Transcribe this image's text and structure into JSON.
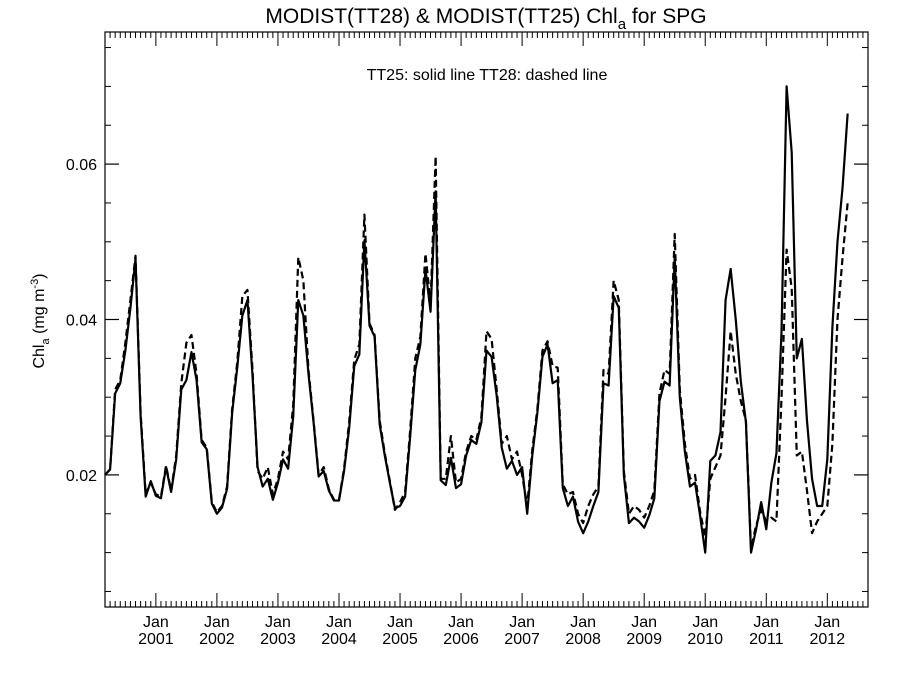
{
  "chart_data": {
    "type": "line",
    "title": {
      "prefix": "MODIST(TT28) & MODIST(TT25)  Chl",
      "subscript": "a",
      "suffix": " for SPG"
    },
    "ylabel": {
      "prefix": "Chl",
      "subscript": "a",
      "middle": " (mg m",
      "superscript": "-3",
      "suffix": ")"
    },
    "annotation": "TT25: solid line   TT28: dashed line",
    "xlim": [
      "2000-03",
      "2012-09"
    ],
    "ylim": [
      0.003,
      0.077
    ],
    "yticks": [
      0.02,
      0.04,
      0.06
    ],
    "ytick_labels": [
      "0.02",
      "0.04",
      "0.06"
    ],
    "xticks": [
      {
        "month": "2001-01",
        "top": "Jan",
        "bottom": "2001"
      },
      {
        "month": "2002-01",
        "top": "Jan",
        "bottom": "2002"
      },
      {
        "month": "2003-01",
        "top": "Jan",
        "bottom": "2003"
      },
      {
        "month": "2004-01",
        "top": "Jan",
        "bottom": "2004"
      },
      {
        "month": "2005-01",
        "top": "Jan",
        "bottom": "2005"
      },
      {
        "month": "2006-01",
        "top": "Jan",
        "bottom": "2006"
      },
      {
        "month": "2007-01",
        "top": "Jan",
        "bottom": "2007"
      },
      {
        "month": "2008-01",
        "top": "Jan",
        "bottom": "2008"
      },
      {
        "month": "2009-01",
        "top": "Jan",
        "bottom": "2009"
      },
      {
        "month": "2010-01",
        "top": "Jan",
        "bottom": "2010"
      },
      {
        "month": "2011-01",
        "top": "Jan",
        "bottom": "2011"
      },
      {
        "month": "2012-01",
        "top": "Jan",
        "bottom": "2012"
      }
    ],
    "grid": false,
    "x_start": "2000-03",
    "x_step": "1 month",
    "series": [
      {
        "name": "TT25",
        "style": "solid",
        "color": "#000000",
        "values": [
          0.02,
          0.0207,
          0.0305,
          0.0318,
          0.036,
          0.0415,
          0.0478,
          0.0275,
          0.0172,
          0.0192,
          0.0173,
          0.017,
          0.021,
          0.0178,
          0.022,
          0.031,
          0.0322,
          0.0358,
          0.0322,
          0.0242,
          0.0233,
          0.0163,
          0.015,
          0.0158,
          0.0182,
          0.028,
          0.0338,
          0.0405,
          0.0425,
          0.0328,
          0.021,
          0.0185,
          0.0195,
          0.0168,
          0.019,
          0.022,
          0.0208,
          0.0275,
          0.0425,
          0.0405,
          0.033,
          0.0268,
          0.0198,
          0.0205,
          0.018,
          0.0167,
          0.0167,
          0.0205,
          0.026,
          0.034,
          0.0355,
          0.0502,
          0.0392,
          0.0378,
          0.0265,
          0.0225,
          0.019,
          0.0157,
          0.016,
          0.0172,
          0.025,
          0.0335,
          0.0368,
          0.0465,
          0.041,
          0.0565,
          0.0193,
          0.0187,
          0.0222,
          0.0183,
          0.0188,
          0.0225,
          0.0245,
          0.024,
          0.0268,
          0.036,
          0.0352,
          0.0302,
          0.0235,
          0.0208,
          0.0218,
          0.02,
          0.021,
          0.015,
          0.0225,
          0.028,
          0.0352,
          0.0368,
          0.0318,
          0.0322,
          0.0183,
          0.016,
          0.0172,
          0.014,
          0.0125,
          0.014,
          0.016,
          0.0178,
          0.0318,
          0.0315,
          0.043,
          0.0415,
          0.02,
          0.0138,
          0.0145,
          0.014,
          0.0132,
          0.0148,
          0.017,
          0.0295,
          0.032,
          0.0315,
          0.048,
          0.03,
          0.023,
          0.0185,
          0.019,
          0.0147,
          0.01,
          0.0218,
          0.0225,
          0.0255,
          0.0425,
          0.0465,
          0.04,
          0.032,
          0.0268,
          0.01,
          0.013,
          0.0165,
          0.013,
          0.019,
          0.0228,
          0.0385,
          0.07,
          0.0615,
          0.035,
          0.0375,
          0.027,
          0.0195,
          0.016,
          0.016,
          0.022,
          0.039,
          0.05,
          0.057,
          0.0665
        ]
      },
      {
        "name": "TT28",
        "style": "dashed",
        "color": "#000000",
        "values": [
          0.02,
          0.0207,
          0.031,
          0.0322,
          0.037,
          0.0425,
          0.0482,
          0.028,
          0.0175,
          0.019,
          0.0175,
          0.0172,
          0.0212,
          0.018,
          0.0225,
          0.0318,
          0.037,
          0.038,
          0.033,
          0.0245,
          0.0235,
          0.0165,
          0.0152,
          0.016,
          0.0185,
          0.0285,
          0.0345,
          0.043,
          0.0438,
          0.0335,
          0.0205,
          0.0195,
          0.021,
          0.0175,
          0.0195,
          0.023,
          0.022,
          0.029,
          0.048,
          0.045,
          0.0335,
          0.027,
          0.02,
          0.021,
          0.0182,
          0.0168,
          0.0168,
          0.0208,
          0.0268,
          0.0348,
          0.0368,
          0.0535,
          0.0395,
          0.038,
          0.027,
          0.0228,
          0.0192,
          0.0155,
          0.0165,
          0.0178,
          0.0258,
          0.035,
          0.0378,
          0.0485,
          0.042,
          0.061,
          0.0195,
          0.0195,
          0.025,
          0.019,
          0.0195,
          0.023,
          0.025,
          0.0245,
          0.0275,
          0.0385,
          0.0375,
          0.031,
          0.024,
          0.025,
          0.022,
          0.023,
          0.02,
          0.016,
          0.0232,
          0.0285,
          0.036,
          0.0372,
          0.034,
          0.0338,
          0.0188,
          0.0175,
          0.0178,
          0.015,
          0.0138,
          0.016,
          0.0175,
          0.0185,
          0.0335,
          0.033,
          0.045,
          0.0425,
          0.0205,
          0.015,
          0.016,
          0.0155,
          0.0145,
          0.016,
          0.018,
          0.0305,
          0.0335,
          0.033,
          0.051,
          0.031,
          0.024,
          0.0195,
          0.02,
          0.0152,
          0.012,
          0.0195,
          0.021,
          0.0225,
          0.03,
          0.0385,
          0.033,
          0.0295,
          0.027,
          0.0105,
          0.0135,
          0.0155,
          0.014,
          0.0145,
          0.014,
          0.03,
          0.049,
          0.044,
          0.0225,
          0.023,
          0.018,
          0.0125,
          0.014,
          0.015,
          0.016,
          0.024,
          0.04,
          0.048,
          0.055
        ]
      }
    ]
  }
}
